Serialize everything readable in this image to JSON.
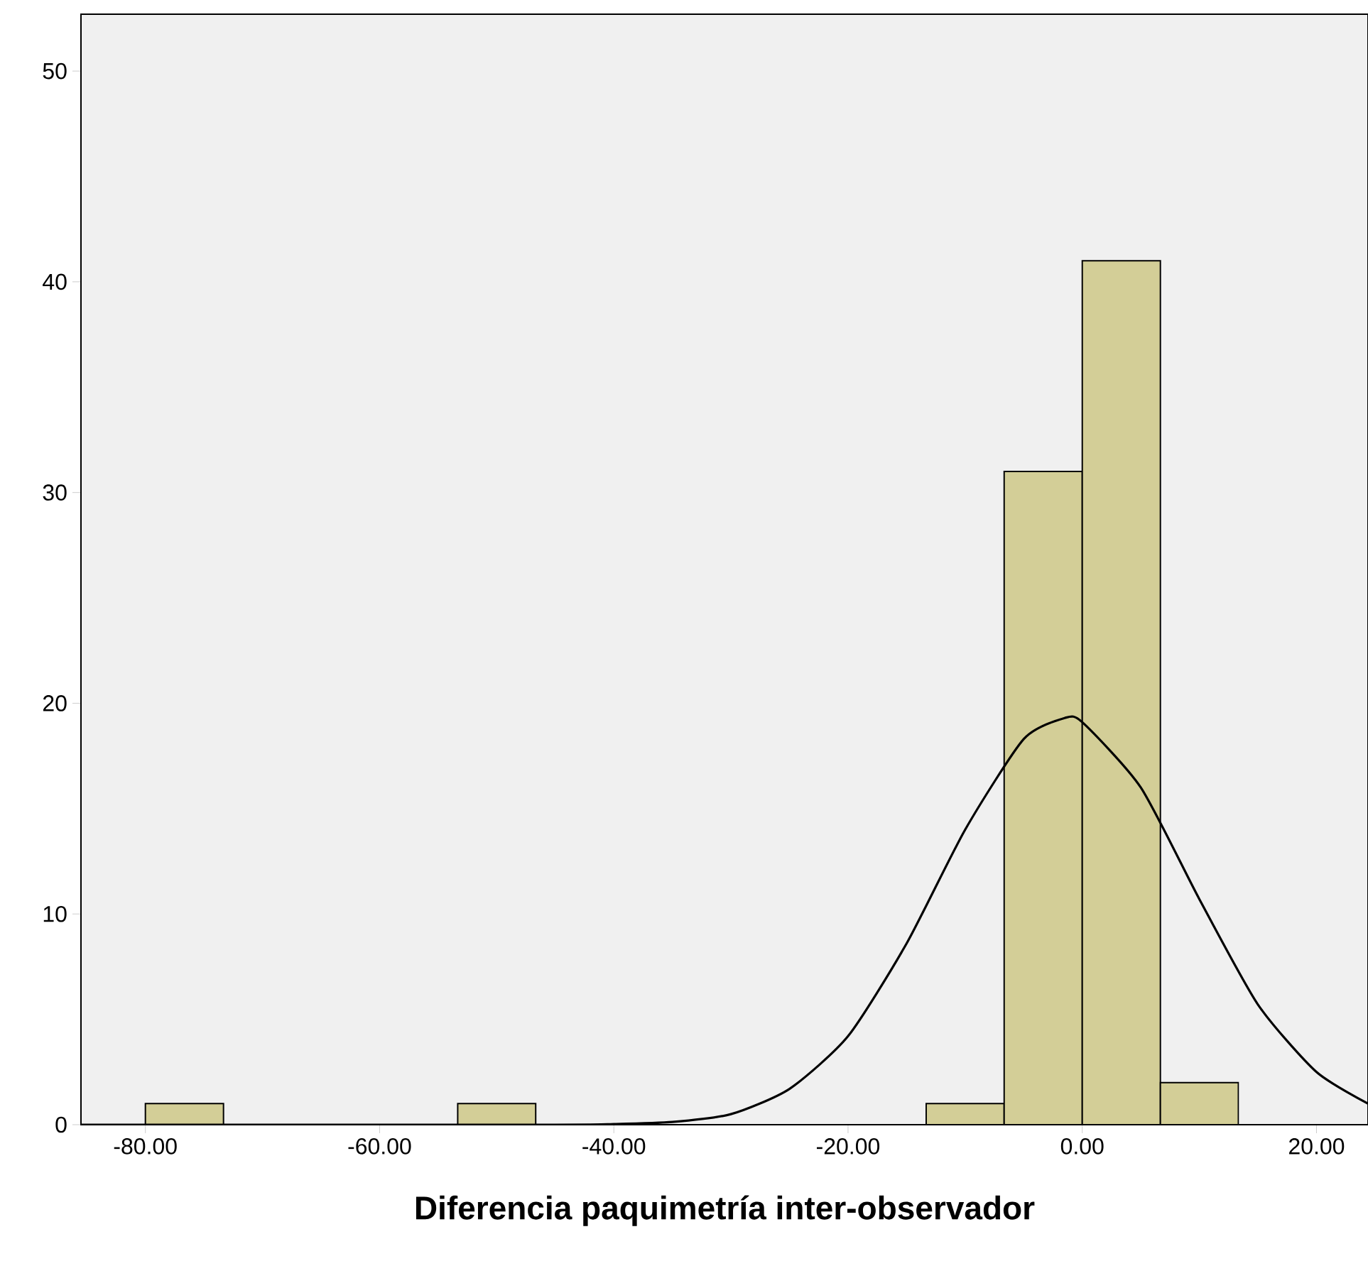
{
  "chart_data": {
    "type": "histogram",
    "xlabel": "Diferencia paquimetría inter-observador",
    "xlim": [
      -85.5,
      24.4
    ],
    "ylim": [
      0,
      52.7
    ],
    "xticks": [
      {
        "value": -80,
        "label": "-80.00"
      },
      {
        "value": -60,
        "label": "-60.00"
      },
      {
        "value": -40,
        "label": "-40.00"
      },
      {
        "value": -20,
        "label": "-20.00"
      },
      {
        "value": 0,
        "label": "0.00"
      },
      {
        "value": 20,
        "label": "20.00"
      }
    ],
    "yticks": [
      0,
      10,
      20,
      30,
      40,
      50
    ],
    "grid": false,
    "series": [
      {
        "color": "#d3ce97",
        "bins": [
          -80,
          -73.33,
          -66.67,
          -60,
          -53.33,
          -46.67,
          -40,
          -33.33,
          -26.67,
          -20,
          -13.33,
          -6.67,
          0,
          6.67,
          13.33
        ],
        "values": [
          1,
          0,
          0,
          0,
          1,
          0,
          0,
          0,
          0,
          0,
          1,
          31,
          41,
          2
        ]
      },
      {
        "type": "line",
        "color": "#000000",
        "marker": "none",
        "line_style": "solid",
        "x": [
          -85.5,
          -45,
          -40,
          -35,
          -30,
          -25,
          -20,
          -15,
          -10,
          -5,
          -1.5,
          0,
          5,
          10,
          15,
          20,
          24.4
        ],
        "values": [
          0,
          0,
          0.03,
          0.13,
          0.5,
          1.7,
          4.2,
          8.6,
          14,
          18.3,
          19.3,
          19.1,
          16,
          10.7,
          5.7,
          2.5,
          1
        ]
      }
    ]
  }
}
